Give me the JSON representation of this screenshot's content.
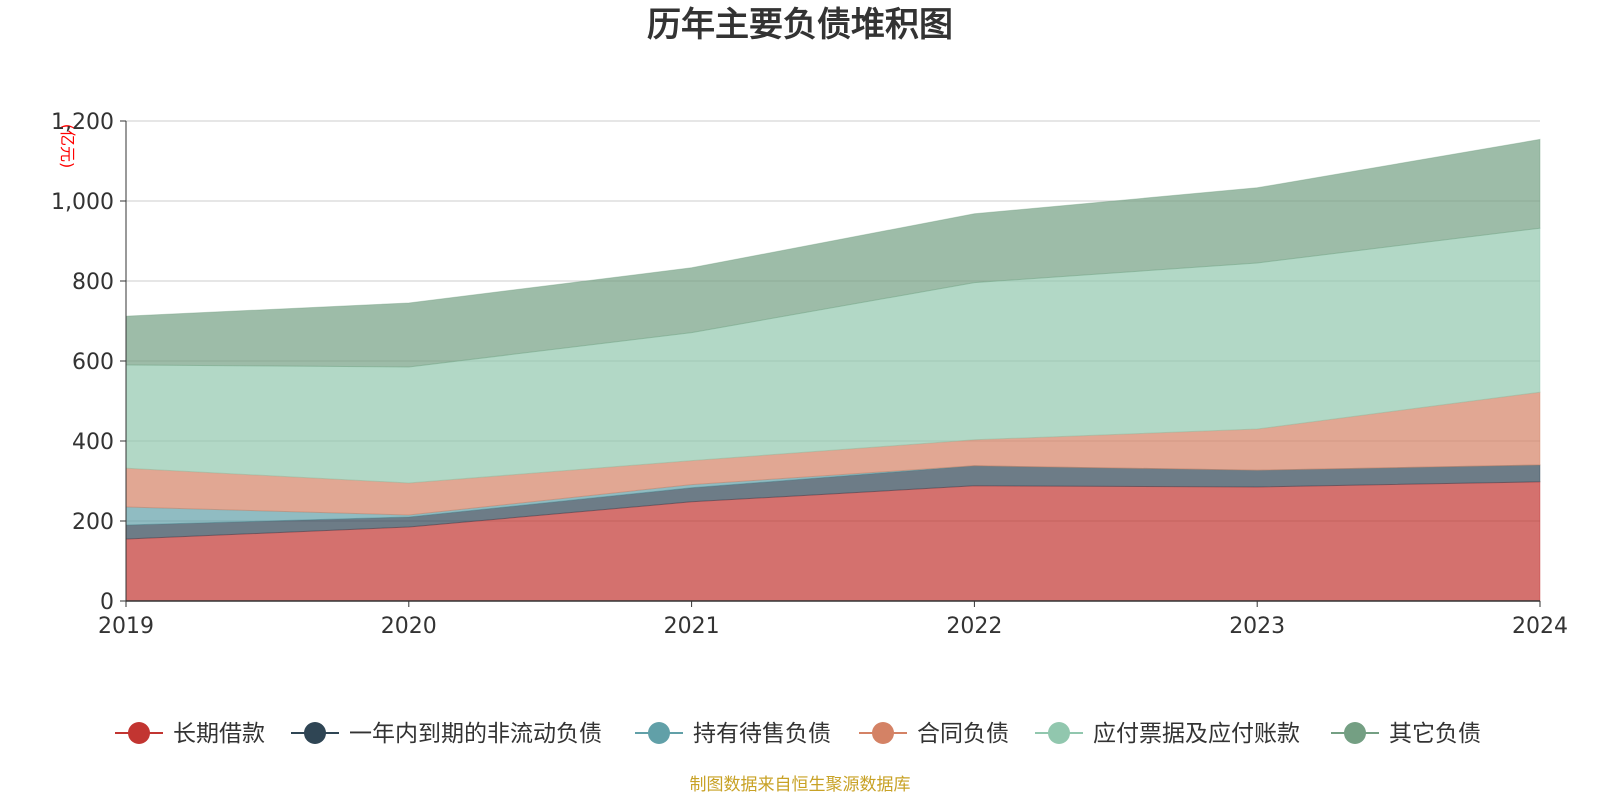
{
  "chart_data": {
    "type": "area",
    "stacked": true,
    "title": "历年主要负债堆积图",
    "unit": "(亿元)",
    "x": [
      "2019",
      "2020",
      "2021",
      "2022",
      "2023",
      "2024"
    ],
    "ylim": [
      0,
      1200
    ],
    "yticks": [
      0,
      200,
      400,
      600,
      800,
      1000,
      1200
    ],
    "ytick_labels": [
      "0",
      "200",
      "400",
      "600",
      "800",
      "1,000",
      "1,200"
    ],
    "grid": true,
    "legend_position": "bottom",
    "series": [
      {
        "name": "长期借款",
        "color": "#c23531",
        "values": [
          155,
          185,
          248,
          288,
          285,
          298
        ]
      },
      {
        "name": "一年内到期的非流动负债",
        "color": "#2f4554",
        "values": [
          35,
          25,
          35,
          50,
          42,
          42
        ]
      },
      {
        "name": "持有待售负债",
        "color": "#61a0a8",
        "values": [
          45,
          5,
          8,
          0,
          0,
          0
        ]
      },
      {
        "name": "合同负债",
        "color": "#d48265",
        "values": [
          97,
          80,
          60,
          65,
          103,
          182
        ]
      },
      {
        "name": "应付票据及应付账款",
        "color": "#91c7ae",
        "values": [
          258,
          290,
          320,
          393,
          415,
          410
        ]
      },
      {
        "name": "其它负债",
        "color": "#749f83",
        "values": [
          122,
          160,
          162,
          172,
          188,
          222
        ]
      }
    ],
    "source_note": "制图数据来自恒生聚源数据库"
  }
}
